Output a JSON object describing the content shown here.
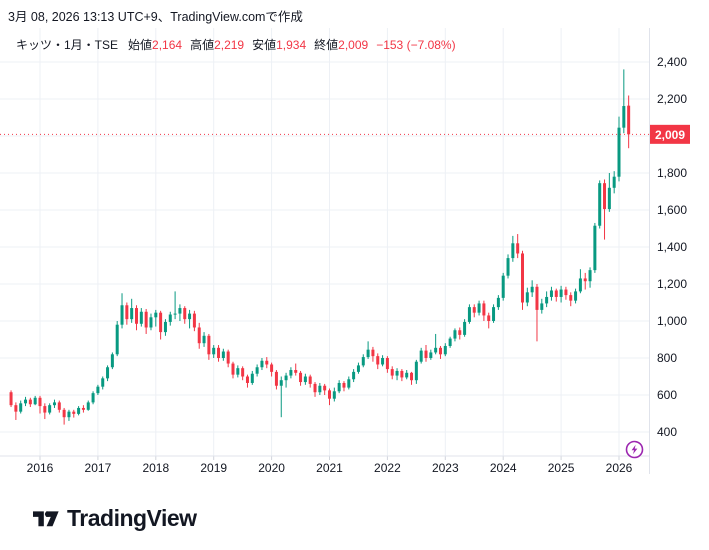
{
  "header": {
    "created_line": "3月 08, 2026 13:13 UTC+9、TradingView.comで作成"
  },
  "legend": {
    "symbol_title": "キッツ・1月・TSE",
    "fields": [
      {
        "label": "始値",
        "value": "2,164"
      },
      {
        "label": "高値",
        "value": "2,219"
      },
      {
        "label": "安値",
        "value": "1,934"
      },
      {
        "label": "終値",
        "value": "2,009"
      }
    ],
    "change_text": "−153 (−7.08%)",
    "value_color": "#F23645"
  },
  "price_scale": {
    "grid_prices": [
      400,
      600,
      800,
      1000,
      1200,
      1400,
      1600,
      1800,
      2000,
      2200,
      2400
    ],
    "tick_labels": [
      {
        "price": 2400,
        "label": "2,400"
      },
      {
        "price": 2200,
        "label": "2,200"
      },
      {
        "price": 1800,
        "label": "1,800"
      },
      {
        "price": 1600,
        "label": "1,600"
      },
      {
        "price": 1400,
        "label": "1,400"
      },
      {
        "price": 1200,
        "label": "1,200"
      },
      {
        "price": 1000,
        "label": "1,000"
      },
      {
        "price": 800,
        "label": "800"
      },
      {
        "price": 600,
        "label": "600"
      },
      {
        "price": 400,
        "label": "400"
      }
    ],
    "last_price": 2009,
    "last_price_label": "2,009",
    "last_price_color": "#F23645"
  },
  "time_scale": {
    "year_labels": [
      "2016",
      "2017",
      "2018",
      "2019",
      "2020",
      "2021",
      "2022",
      "2023",
      "2024",
      "2025",
      "2026"
    ]
  },
  "chart_data": {
    "type": "candlestick",
    "title": "キッツ・1月・TSE",
    "symbol": "キッツ",
    "exchange": "TSE",
    "interval": "1月",
    "start_month": "2015-07",
    "end_month": "2026-03",
    "ylim": [
      340,
      2480
    ],
    "grid": true,
    "up_color": "#089981",
    "down_color": "#F23645",
    "open": 2164,
    "high": 2219,
    "low": 1934,
    "close": 2009,
    "prev_close": 2162,
    "change": "−153",
    "change_pct": "−7.08%",
    "ohlc": [
      [
        615,
        625,
        535,
        545
      ],
      [
        545,
        560,
        465,
        510
      ],
      [
        510,
        570,
        500,
        555
      ],
      [
        555,
        590,
        540,
        575
      ],
      [
        575,
        585,
        535,
        550
      ],
      [
        550,
        595,
        545,
        585
      ],
      [
        585,
        595,
        500,
        540
      ],
      [
        540,
        555,
        470,
        505
      ],
      [
        505,
        555,
        495,
        545
      ],
      [
        545,
        575,
        530,
        560
      ],
      [
        560,
        570,
        505,
        520
      ],
      [
        520,
        530,
        440,
        480
      ],
      [
        480,
        520,
        460,
        510
      ],
      [
        510,
        520,
        478,
        498
      ],
      [
        498,
        540,
        490,
        530
      ],
      [
        530,
        545,
        505,
        520
      ],
      [
        520,
        570,
        515,
        560
      ],
      [
        560,
        620,
        550,
        610
      ],
      [
        610,
        655,
        600,
        645
      ],
      [
        645,
        700,
        630,
        690
      ],
      [
        690,
        760,
        675,
        750
      ],
      [
        750,
        830,
        740,
        820
      ],
      [
        820,
        1000,
        810,
        980
      ],
      [
        980,
        1150,
        960,
        1085
      ],
      [
        1085,
        1100,
        980,
        1010
      ],
      [
        1010,
        1120,
        990,
        1070
      ],
      [
        1070,
        1085,
        950,
        985
      ],
      [
        985,
        1070,
        970,
        1050
      ],
      [
        1050,
        1065,
        930,
        965
      ],
      [
        965,
        1040,
        950,
        1020
      ],
      [
        1020,
        1060,
        970,
        1045
      ],
      [
        1045,
        1055,
        900,
        940
      ],
      [
        940,
        1010,
        920,
        995
      ],
      [
        995,
        1050,
        975,
        1035
      ],
      [
        1035,
        1160,
        1010,
        1040
      ],
      [
        1040,
        1090,
        1000,
        1070
      ],
      [
        1070,
        1080,
        985,
        1010
      ],
      [
        1010,
        1060,
        960,
        1040
      ],
      [
        1040,
        1055,
        945,
        965
      ],
      [
        965,
        990,
        850,
        880
      ],
      [
        880,
        940,
        860,
        920
      ],
      [
        920,
        930,
        790,
        820
      ],
      [
        820,
        870,
        800,
        855
      ],
      [
        855,
        870,
        780,
        800
      ],
      [
        800,
        850,
        785,
        835
      ],
      [
        835,
        845,
        750,
        770
      ],
      [
        770,
        780,
        690,
        710
      ],
      [
        710,
        760,
        695,
        745
      ],
      [
        745,
        755,
        680,
        700
      ],
      [
        700,
        710,
        640,
        665
      ],
      [
        665,
        730,
        655,
        715
      ],
      [
        715,
        765,
        700,
        750
      ],
      [
        750,
        800,
        735,
        785
      ],
      [
        785,
        805,
        745,
        765
      ],
      [
        765,
        775,
        700,
        725
      ],
      [
        725,
        735,
        630,
        650
      ],
      [
        650,
        700,
        480,
        680
      ],
      [
        680,
        720,
        640,
        705
      ],
      [
        705,
        750,
        690,
        735
      ],
      [
        735,
        770,
        705,
        720
      ],
      [
        720,
        730,
        650,
        670
      ],
      [
        670,
        715,
        655,
        700
      ],
      [
        700,
        710,
        640,
        660
      ],
      [
        660,
        670,
        590,
        615
      ],
      [
        615,
        665,
        600,
        650
      ],
      [
        650,
        660,
        600,
        625
      ],
      [
        625,
        635,
        545,
        580
      ],
      [
        580,
        640,
        565,
        620
      ],
      [
        620,
        680,
        610,
        665
      ],
      [
        665,
        675,
        620,
        640
      ],
      [
        640,
        700,
        630,
        685
      ],
      [
        685,
        740,
        670,
        725
      ],
      [
        725,
        775,
        715,
        760
      ],
      [
        760,
        820,
        750,
        805
      ],
      [
        805,
        890,
        795,
        845
      ],
      [
        845,
        860,
        780,
        810
      ],
      [
        810,
        825,
        740,
        765
      ],
      [
        765,
        815,
        755,
        800
      ],
      [
        800,
        810,
        720,
        740
      ],
      [
        740,
        755,
        685,
        705
      ],
      [
        705,
        745,
        680,
        730
      ],
      [
        730,
        740,
        675,
        695
      ],
      [
        695,
        735,
        685,
        720
      ],
      [
        720,
        725,
        655,
        680
      ],
      [
        680,
        790,
        660,
        780
      ],
      [
        780,
        855,
        770,
        840
      ],
      [
        840,
        870,
        780,
        800
      ],
      [
        800,
        845,
        790,
        830
      ],
      [
        830,
        930,
        820,
        855
      ],
      [
        855,
        865,
        795,
        820
      ],
      [
        820,
        880,
        810,
        865
      ],
      [
        865,
        915,
        855,
        905
      ],
      [
        905,
        960,
        890,
        950
      ],
      [
        950,
        965,
        900,
        925
      ],
      [
        925,
        1010,
        915,
        995
      ],
      [
        995,
        1090,
        985,
        1075
      ],
      [
        1075,
        1090,
        1020,
        1045
      ],
      [
        1045,
        1110,
        1030,
        1095
      ],
      [
        1095,
        1110,
        1000,
        1030
      ],
      [
        1030,
        1045,
        960,
        1000
      ],
      [
        1000,
        1090,
        990,
        1075
      ],
      [
        1075,
        1140,
        1060,
        1125
      ],
      [
        1125,
        1260,
        1110,
        1245
      ],
      [
        1245,
        1360,
        1230,
        1340
      ],
      [
        1340,
        1460,
        1320,
        1420
      ],
      [
        1420,
        1470,
        1340,
        1365
      ],
      [
        1365,
        1380,
        1060,
        1100
      ],
      [
        1100,
        1180,
        1080,
        1155
      ],
      [
        1155,
        1220,
        1130,
        1185
      ],
      [
        1185,
        1200,
        890,
        1060
      ],
      [
        1060,
        1120,
        1040,
        1095
      ],
      [
        1095,
        1160,
        1075,
        1130
      ],
      [
        1130,
        1185,
        1110,
        1165
      ],
      [
        1165,
        1175,
        1105,
        1130
      ],
      [
        1130,
        1190,
        1100,
        1170
      ],
      [
        1170,
        1185,
        1115,
        1140
      ],
      [
        1140,
        1155,
        1080,
        1110
      ],
      [
        1110,
        1175,
        1095,
        1160
      ],
      [
        1160,
        1280,
        1150,
        1230
      ],
      [
        1230,
        1260,
        1170,
        1215
      ],
      [
        1215,
        1290,
        1180,
        1275
      ],
      [
        1275,
        1530,
        1260,
        1515
      ],
      [
        1515,
        1760,
        1500,
        1745
      ],
      [
        1745,
        1765,
        1440,
        1605
      ],
      [
        1605,
        1800,
        1590,
        1720
      ],
      [
        1720,
        1810,
        1690,
        1780
      ],
      [
        1780,
        2105,
        1755,
        2045
      ],
      [
        2045,
        2360,
        2015,
        2162
      ],
      [
        2164,
        2219,
        1934,
        2009
      ]
    ]
  },
  "flash_button": {
    "color": "#9C27B0"
  },
  "footer": {
    "brand": "TradingView"
  }
}
